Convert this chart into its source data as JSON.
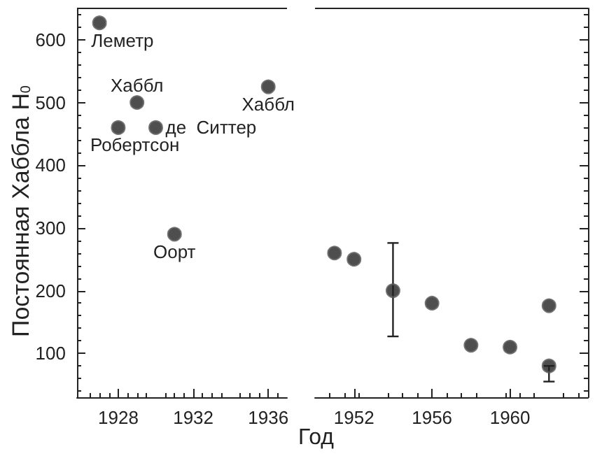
{
  "chart_data": [
    {
      "type": "scatter",
      "ylabel": "Постоянная Хаббла H$_{0}$",
      "x": [
        1927,
        1928,
        1929,
        1930,
        1931,
        1936
      ],
      "series": [
        {
          "color": "#222222",
          "values": [
            627,
            460,
            500,
            460,
            290,
            525
          ]
        }
      ],
      "xlim": [
        1925.8,
        1937
      ],
      "xticks": [
        1928,
        1932,
        1936
      ],
      "ylim": [
        30,
        650
      ],
      "yticks": [
        100,
        200,
        300,
        400,
        500,
        600
      ],
      "marker": "circle",
      "grid": false,
      "annotations": [
        {
          "text": "Леметр",
          "x": 1927,
          "y": 627
        },
        {
          "text": "Робертсон",
          "x": 1928,
          "y": 460
        },
        {
          "text": "Хаббл",
          "x": 1929,
          "y": 500
        },
        {
          "text": "де  Ситтер",
          "x": 1930,
          "y": 460
        },
        {
          "text": "Оорт",
          "x": 1931,
          "y": 290
        },
        {
          "text": "Хаббл",
          "x": 1936,
          "y": 525
        }
      ]
    },
    {
      "type": "scatter",
      "xlabel": "Год",
      "x": [
        1951,
        1952,
        1954,
        1956,
        1958,
        1960,
        1962,
        1962
      ],
      "series": [
        {
          "color": "#222222",
          "values": [
            260,
            250,
            200,
            180,
            113,
            110,
            176,
            80
          ],
          "errors": [
            null,
            null,
            [
              127,
              276
            ],
            null,
            null,
            null,
            null,
            [
              55,
              80
            ]
          ]
        }
      ],
      "xlim": [
        1950,
        1964
      ],
      "xticks": [
        1952,
        1956,
        1960
      ],
      "ylim": [
        30,
        650
      ],
      "yticks": [
        100,
        200,
        300,
        400,
        500,
        600
      ],
      "tick_labels": "x",
      "marker": "circle",
      "grid": false
    }
  ]
}
